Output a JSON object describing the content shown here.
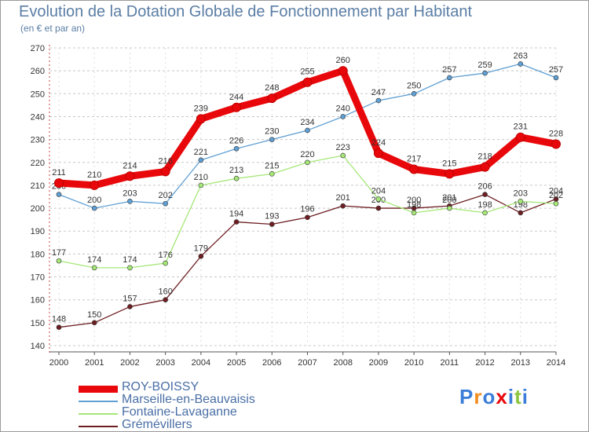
{
  "chart_data": {
    "type": "line",
    "title": "Evolution de la Dotation Globale de Fonctionnement par Habitant",
    "subtitle": "(en € et par an)",
    "xlabel": "",
    "ylabel": "",
    "x": [
      "2000",
      "2001",
      "2002",
      "2003",
      "2004",
      "2005",
      "2006",
      "2007",
      "2008",
      "2009",
      "2010",
      "2011",
      "2012",
      "2013",
      "2014"
    ],
    "ylim": [
      140,
      270
    ],
    "yticks": [
      140,
      150,
      160,
      170,
      180,
      190,
      200,
      210,
      220,
      230,
      240,
      250,
      260,
      270
    ],
    "grid": "horizontal dashed",
    "legend_position": "bottom-left",
    "series": [
      {
        "name": "Grémévillers",
        "color": "#6e1e22",
        "values": [
          148,
          150,
          157,
          160,
          179,
          194,
          193,
          196,
          201,
          200,
          200,
          201,
          206,
          198,
          204
        ]
      },
      {
        "name": "Fontaine-Lavaganne",
        "color": "#a6e878",
        "values": [
          177,
          174,
          174,
          176,
          210,
          213,
          215,
          220,
          223,
          204,
          198,
          200,
          198,
          203,
          202
        ]
      },
      {
        "name": "Marseille-en-Beauvaisis",
        "color": "#5f9fd3",
        "values": [
          206,
          200,
          203,
          202,
          221,
          226,
          230,
          234,
          240,
          247,
          250,
          257,
          259,
          263,
          257
        ]
      },
      {
        "name": "ROY-BOISSY",
        "color": "#e8080b",
        "values": [
          211,
          210,
          214,
          216,
          239,
          244,
          248,
          255,
          260,
          224,
          217,
          215,
          218,
          231,
          228
        ]
      }
    ],
    "legend_order": [
      "ROY-BOISSY",
      "Marseille-en-Beauvaisis",
      "Fontaine-Lavaganne",
      "Grémévillers"
    ]
  },
  "logo": {
    "text": "Proxiti",
    "letter_colors": [
      "#3b7dd8",
      "#f28c1d",
      "#3b7dd8",
      "#e8080b",
      "#3b7dd8",
      "#8cc63f",
      "#3b7dd8"
    ]
  }
}
